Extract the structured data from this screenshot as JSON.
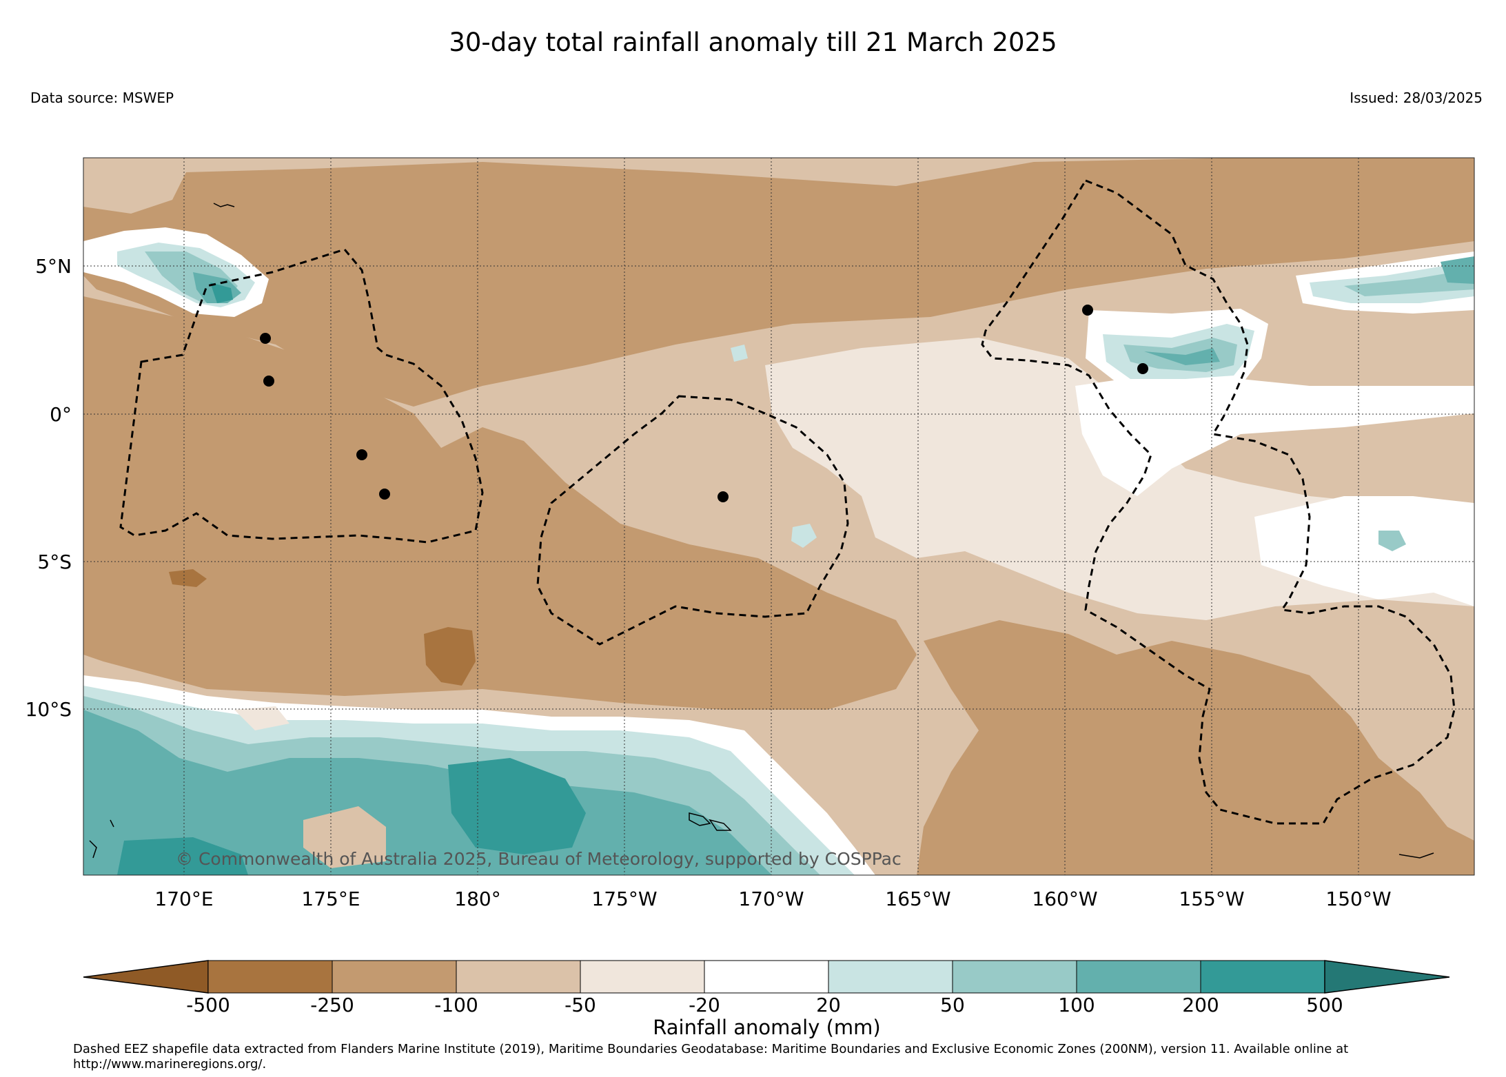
{
  "title": "30-day total rainfall anomaly till 21 March 2025",
  "data_source": "Data source: MSWEP",
  "issued": "Issued: 28/03/2025",
  "copyright": "© Commonwealth of Australia 2025, Bureau of Meteorology, supported by COSPPac",
  "latitude_labels": [
    "5°N",
    "0°",
    "5°S",
    "10°S"
  ],
  "longitude_labels": [
    "170°E",
    "175°E",
    "180°",
    "175°W",
    "170°W",
    "165°W",
    "160°W",
    "155°W",
    "150°W"
  ],
  "colorbar": {
    "title": "Rainfall anomaly (mm)",
    "tick_labels": [
      "-500",
      "-250",
      "-100",
      "-50",
      "-20",
      "20",
      "50",
      "100",
      "200",
      "500"
    ],
    "colors": {
      "below_min": "#8f5a26",
      "n500_n250": "#a8743f",
      "n250_n100": "#c39a70",
      "n100_n50": "#dbc2a9",
      "n50_n20": "#f0e6dc",
      "n20_20": "#ffffff",
      "20_50": "#c9e4e3",
      "50_100": "#98cac7",
      "100_200": "#63b0ad",
      "200_500": "#339a97",
      "above_max": "#247875"
    }
  },
  "footnote": "Dashed EEZ shapefile data extracted from Flanders Marine Institute (2019), Maritime Boundaries Geodatabase: Maritime Boundaries and Exclusive Economic Zones (200NM), version 11. Available online at http://www.marineregions.org/."
}
